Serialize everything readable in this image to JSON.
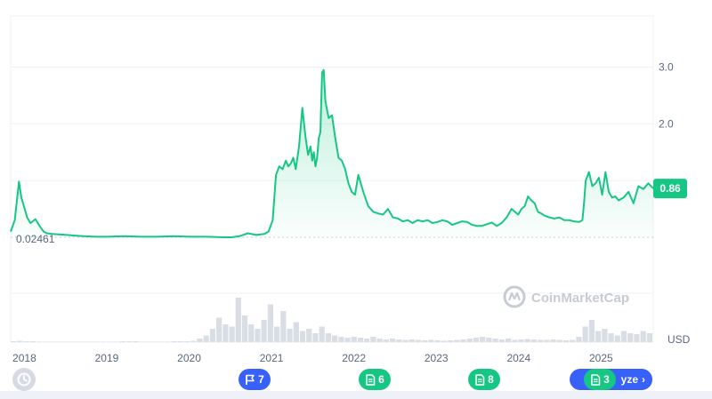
{
  "chart_data": {
    "type": "area",
    "currency": "USD",
    "x_ticks": [
      "2018",
      "2019",
      "2020",
      "2021",
      "2022",
      "2023",
      "2024",
      "2025"
    ],
    "y_ticks": [
      "3.0",
      "2.0"
    ],
    "y_tick_values": [
      3.0,
      2.0
    ],
    "ylim": [
      0,
      3.9
    ],
    "baseline_label": "0.02461",
    "baseline_value": 0.02461,
    "current_price_label": "0.86",
    "current_price": 0.86,
    "grid": true,
    "x_range": [
      2017.92,
      2025.72
    ],
    "series": [
      {
        "x": [
          2017.92,
          2017.97,
          2018.02,
          2018.05,
          2018.08,
          2018.12,
          2018.16,
          2018.22,
          2018.27,
          2018.32,
          2018.36,
          2018.42,
          2018.5,
          2018.6,
          2018.7,
          2018.8,
          2018.95,
          2019.1,
          2019.3,
          2019.5,
          2019.7,
          2019.9,
          2020.1,
          2020.3,
          2020.5,
          2020.6,
          2020.7,
          2020.8,
          2020.9,
          2021.0,
          2021.05,
          2021.1,
          2021.14,
          2021.18,
          2021.22,
          2021.26,
          2021.29,
          2021.32,
          2021.35,
          2021.38,
          2021.42,
          2021.46,
          2021.5,
          2021.53,
          2021.56,
          2021.58,
          2021.6,
          2021.62,
          2021.64,
          2021.66,
          2021.68,
          2021.7,
          2021.72,
          2021.74,
          2021.78,
          2021.82,
          2021.86,
          2021.9,
          2021.94,
          2021.98,
          2022.02,
          2022.06,
          2022.1,
          2022.14,
          2022.2,
          2022.26,
          2022.32,
          2022.38,
          2022.44,
          2022.5,
          2022.56,
          2022.62,
          2022.68,
          2022.74,
          2022.8,
          2022.86,
          2022.92,
          2022.98,
          2023.04,
          2023.1,
          2023.16,
          2023.22,
          2023.28,
          2023.34,
          2023.4,
          2023.46,
          2023.52,
          2023.58,
          2023.64,
          2023.7,
          2023.76,
          2023.82,
          2023.88,
          2023.94,
          2024.0,
          2024.04,
          2024.08,
          2024.12,
          2024.16,
          2024.2,
          2024.24,
          2024.28,
          2024.32,
          2024.36,
          2024.4,
          2024.46,
          2024.52,
          2024.58,
          2024.64,
          2024.7,
          2024.76,
          2024.82,
          2024.86,
          2024.88,
          2024.9,
          2024.94,
          2024.98,
          2025.02,
          2025.06,
          2025.1,
          2025.14,
          2025.18,
          2025.22,
          2025.26,
          2025.3,
          2025.36,
          2025.42,
          2025.48,
          2025.54,
          2025.6,
          2025.66,
          2025.72
        ],
        "y": [
          0.1,
          0.3,
          0.98,
          0.7,
          0.55,
          0.35,
          0.25,
          0.32,
          0.2,
          0.1,
          0.07,
          0.06,
          0.05,
          0.04,
          0.03,
          0.02,
          0.01,
          0.01,
          0.02,
          0.01,
          0.01,
          0.02,
          0.01,
          0.01,
          0.0,
          0.0,
          0.02,
          0.07,
          0.04,
          0.06,
          0.1,
          0.3,
          1.1,
          1.25,
          1.2,
          1.35,
          1.25,
          1.3,
          1.4,
          1.2,
          1.6,
          2.28,
          1.75,
          1.45,
          1.6,
          1.35,
          1.5,
          1.25,
          1.4,
          1.75,
          1.85,
          2.9,
          2.95,
          2.4,
          2.1,
          2.15,
          1.75,
          1.4,
          1.35,
          1.2,
          0.95,
          0.8,
          0.75,
          1.1,
          0.8,
          0.55,
          0.45,
          0.42,
          0.4,
          0.5,
          0.35,
          0.33,
          0.28,
          0.3,
          0.25,
          0.3,
          0.28,
          0.3,
          0.25,
          0.27,
          0.3,
          0.28,
          0.22,
          0.25,
          0.28,
          0.27,
          0.22,
          0.2,
          0.2,
          0.23,
          0.26,
          0.2,
          0.25,
          0.35,
          0.5,
          0.45,
          0.4,
          0.5,
          0.55,
          0.72,
          0.65,
          0.6,
          0.45,
          0.42,
          0.38,
          0.35,
          0.33,
          0.35,
          0.3,
          0.3,
          0.28,
          0.27,
          0.3,
          0.6,
          1.0,
          1.15,
          0.9,
          0.95,
          1.05,
          0.75,
          1.15,
          0.8,
          0.7,
          0.72,
          0.65,
          0.7,
          0.8,
          0.6,
          0.9,
          0.85,
          0.95,
          0.86
        ]
      }
    ],
    "volume": [
      0.02,
      0.03,
      0.02,
      0.02,
      0.01,
      0.01,
      0.01,
      0.01,
      0.01,
      0.01,
      0.01,
      0.01,
      0.01,
      0.01,
      0.01,
      0.01,
      0.01,
      0.02,
      0.02,
      0.02,
      0.01,
      0.01,
      0.01,
      0.01,
      0.01,
      0.02,
      0.02,
      0.02,
      0.03,
      0.08,
      0.15,
      0.3,
      0.55,
      0.4,
      0.35,
      1.0,
      0.6,
      0.4,
      0.3,
      0.5,
      0.85,
      0.35,
      0.7,
      0.3,
      0.45,
      0.25,
      0.3,
      0.2,
      0.35,
      0.2,
      0.15,
      0.12,
      0.1,
      0.12,
      0.1,
      0.08,
      0.12,
      0.08,
      0.06,
      0.08,
      0.06,
      0.05,
      0.06,
      0.05,
      0.04,
      0.05,
      0.04,
      0.03,
      0.04,
      0.05,
      0.06,
      0.08,
      0.1,
      0.12,
      0.1,
      0.08,
      0.06,
      0.08,
      0.05,
      0.06,
      0.07,
      0.06,
      0.05,
      0.05,
      0.06,
      0.05,
      0.04,
      0.05,
      0.12,
      0.35,
      0.5,
      0.25,
      0.3,
      0.2,
      0.15,
      0.25,
      0.2,
      0.18,
      0.25,
      0.2
    ]
  },
  "watermark": {
    "text": "CoinMarketCap"
  },
  "events": [
    {
      "count": "7",
      "color": "#3861fb",
      "icon": "flag-icon"
    },
    {
      "count": "6",
      "color": "#16c784",
      "icon": "document-icon"
    },
    {
      "count": "8",
      "color": "#16c784",
      "icon": "document-icon"
    },
    {
      "count": "3",
      "color": "#16c784",
      "icon": "document-icon"
    }
  ],
  "analyze_button": {
    "label": "yze"
  },
  "colors": {
    "line": "#16c784",
    "badge": "#16c784",
    "blue": "#3861fb",
    "volume": "#d9dde4",
    "baseline": "#c9ced8"
  }
}
